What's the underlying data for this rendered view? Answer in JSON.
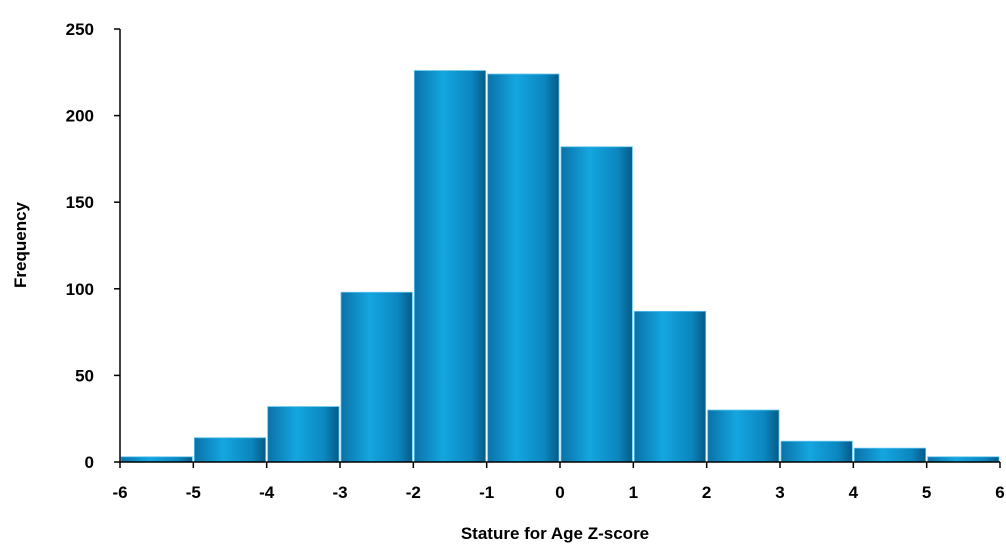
{
  "chart_data": {
    "type": "bar",
    "subtype": "histogram",
    "title": "",
    "xlabel": "Stature for Age Z-score",
    "ylabel": "Frequency",
    "bins": [
      {
        "start": -6,
        "end": -5,
        "value": 3
      },
      {
        "start": -5,
        "end": -4,
        "value": 14
      },
      {
        "start": -4,
        "end": -3,
        "value": 32
      },
      {
        "start": -3,
        "end": -2,
        "value": 98
      },
      {
        "start": -2,
        "end": -1,
        "value": 226
      },
      {
        "start": -1,
        "end": 0,
        "value": 224
      },
      {
        "start": 0,
        "end": 1,
        "value": 182
      },
      {
        "start": 1,
        "end": 2,
        "value": 87
      },
      {
        "start": 2,
        "end": 3,
        "value": 30
      },
      {
        "start": 3,
        "end": 4,
        "value": 12
      },
      {
        "start": 4,
        "end": 5,
        "value": 8
      },
      {
        "start": 5,
        "end": 6,
        "value": 3
      }
    ],
    "x_ticks": [
      "-6",
      "-5",
      "-4",
      "-3",
      "-2",
      "-1",
      "0",
      "1",
      "2",
      "3",
      "4",
      "5",
      "6"
    ],
    "x_tick_values": [
      -6,
      -5,
      -4,
      -3,
      -2,
      -1,
      0,
      1,
      2,
      3,
      4,
      5,
      6
    ],
    "y_ticks": [
      "0",
      "50",
      "100",
      "150",
      "200",
      "250"
    ],
    "y_tick_values": [
      0,
      50,
      100,
      150,
      200,
      250
    ],
    "xlim": [
      -6,
      6
    ],
    "ylim": [
      0,
      250
    ],
    "grid": false,
    "legend": "none",
    "bar_color": "#0a8fc8"
  }
}
